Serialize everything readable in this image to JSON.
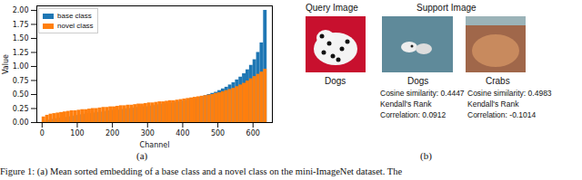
{
  "chart_data": {
    "type": "bar",
    "x_label": "Channel",
    "y_label": "Value",
    "x": [
      0,
      10,
      20,
      30,
      40,
      50,
      60,
      70,
      80,
      90,
      100,
      110,
      120,
      130,
      140,
      150,
      160,
      170,
      180,
      190,
      200,
      210,
      220,
      230,
      240,
      250,
      260,
      270,
      280,
      290,
      300,
      310,
      320,
      330,
      340,
      350,
      360,
      370,
      380,
      390,
      400,
      410,
      420,
      430,
      440,
      450,
      460,
      470,
      480,
      490,
      500,
      510,
      520,
      530,
      540,
      550,
      560,
      570,
      580,
      590,
      600,
      610,
      620,
      630
    ],
    "series": [
      {
        "name": "base class",
        "color": "#1f77b4",
        "values": [
          0.01,
          0.03,
          0.05,
          0.06,
          0.07,
          0.08,
          0.09,
          0.1,
          0.11,
          0.12,
          0.13,
          0.14,
          0.15,
          0.16,
          0.17,
          0.18,
          0.18,
          0.19,
          0.2,
          0.21,
          0.22,
          0.22,
          0.23,
          0.24,
          0.25,
          0.25,
          0.26,
          0.27,
          0.28,
          0.28,
          0.29,
          0.3,
          0.31,
          0.32,
          0.33,
          0.34,
          0.35,
          0.36,
          0.37,
          0.38,
          0.39,
          0.4,
          0.42,
          0.43,
          0.45,
          0.46,
          0.48,
          0.5,
          0.52,
          0.54,
          0.57,
          0.6,
          0.63,
          0.67,
          0.71,
          0.76,
          0.81,
          0.87,
          0.94,
          1.02,
          1.12,
          1.25,
          1.42,
          2.0
        ]
      },
      {
        "name": "novel class",
        "color": "#ff7f0e",
        "values": [
          0.1,
          0.13,
          0.15,
          0.16,
          0.17,
          0.18,
          0.19,
          0.2,
          0.21,
          0.21,
          0.22,
          0.23,
          0.23,
          0.24,
          0.25,
          0.25,
          0.26,
          0.27,
          0.27,
          0.28,
          0.28,
          0.29,
          0.3,
          0.3,
          0.31,
          0.31,
          0.32,
          0.33,
          0.33,
          0.34,
          0.35,
          0.35,
          0.36,
          0.37,
          0.37,
          0.38,
          0.39,
          0.39,
          0.4,
          0.41,
          0.42,
          0.43,
          0.44,
          0.45,
          0.46,
          0.47,
          0.48,
          0.49,
          0.5,
          0.52,
          0.53,
          0.55,
          0.57,
          0.59,
          0.61,
          0.64,
          0.67,
          0.7,
          0.74,
          0.78,
          0.82,
          0.86,
          0.9,
          0.95
        ]
      }
    ],
    "xlim": [
      -15,
      655
    ],
    "xticks": [
      0,
      100,
      200,
      300,
      400,
      500,
      600
    ],
    "ylim": [
      0,
      2.08
    ],
    "yticks": [
      {
        "value": 0,
        "label": "0.00"
      },
      {
        "value": 0.25,
        "label": "0.25"
      },
      {
        "value": 0.5,
        "label": "0.50"
      },
      {
        "value": 0.75,
        "label": "0.75"
      },
      {
        "value": 1,
        "label": "1.00"
      },
      {
        "value": 1.25,
        "label": "1.25"
      },
      {
        "value": 1.5,
        "label": "1.50"
      },
      {
        "value": 1.75,
        "label": "1.75"
      },
      {
        "value": 2,
        "label": "2.00"
      }
    ],
    "legend": "upper left",
    "grid": false
  },
  "panel_a_label": "(a)",
  "panel_b": {
    "label": "(b)",
    "query": {
      "title": "Query Image",
      "class": "Dogs"
    },
    "support": {
      "title": "Support Image",
      "items": [
        {
          "class": "Dogs",
          "lines": [
            "Cosine similarity: 0.4447",
            "Kendall's Rank",
            "Correlation: 0.0912"
          ]
        },
        {
          "class": "Crabs",
          "lines": [
            "Cosine similarity: 0.4983",
            "Kendall's Rank",
            "Correlation: -0.1014"
          ]
        }
      ]
    }
  },
  "caption": "Figure 1: (a) Mean sorted embedding of a base class and a novel class on the mini-ImageNet dataset. The"
}
